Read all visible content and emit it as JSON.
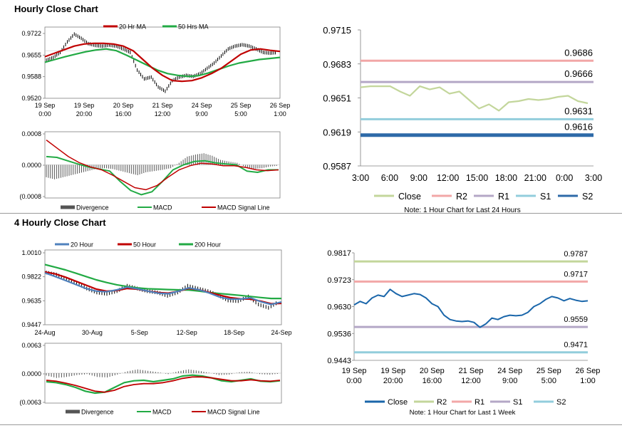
{
  "sections": {
    "hourly_title": "Hourly Close Chart",
    "four_hourly_title": "4 Hourly Close Chart"
  },
  "colors": {
    "red": "#c00000",
    "green": "#22aa44",
    "blue": "#4f81bd",
    "dark": "#555555",
    "lgreen": "#c3d69b",
    "pink": "#f2a7a7",
    "purple": "#b4a7c6",
    "lblue": "#92cddc",
    "dblue": "#2e6aa8",
    "closeblue": "#1a66aa"
  },
  "chart_data": [
    {
      "id": "hourly_price",
      "type": "line",
      "title": "",
      "legend": [
        "20 Hr MA",
        "50 Hrs MA"
      ],
      "ylim": [
        0.952,
        0.9722
      ],
      "y_ticks": [
        "0.9722",
        "0.9655",
        "0.9588",
        "0.9520"
      ],
      "x_ticks": [
        [
          "19 Sep",
          "0:00"
        ],
        [
          "19 Sep",
          "20:00"
        ],
        [
          "20 Sep",
          "16:00"
        ],
        [
          "21 Sep",
          "12:00"
        ],
        [
          "24 Sep",
          "9:00"
        ],
        [
          "25 Sep",
          "5:00"
        ],
        [
          "26 Sep",
          "1:00"
        ]
      ],
      "series": [
        {
          "name": "Close",
          "values": [
            0.9628,
            0.9636,
            0.965,
            0.968,
            0.9702,
            0.969,
            0.9675,
            0.967,
            0.9668,
            0.9671,
            0.9668,
            0.966,
            0.965,
            0.96,
            0.9575,
            0.958,
            0.9552,
            0.954,
            0.957,
            0.958,
            0.9585,
            0.9582,
            0.959,
            0.9605,
            0.962,
            0.964,
            0.966,
            0.9668,
            0.9672,
            0.9668,
            0.966,
            0.965,
            0.9648,
            0.965
          ]
        },
        {
          "name": "20 Hr MA",
          "values": [
            0.9638,
            0.9648,
            0.9658,
            0.9668,
            0.9674,
            0.9676,
            0.9676,
            0.9674,
            0.9668,
            0.9655,
            0.963,
            0.9605,
            0.9585,
            0.957,
            0.9568,
            0.957,
            0.9578,
            0.959,
            0.9605,
            0.9625,
            0.9645,
            0.9657,
            0.966,
            0.9656,
            0.9653
          ]
        },
        {
          "name": "50 Hrs MA",
          "values": [
            0.9622,
            0.963,
            0.9638,
            0.9645,
            0.9652,
            0.9657,
            0.966,
            0.9655,
            0.9642,
            0.9628,
            0.9614,
            0.96,
            0.959,
            0.9585,
            0.9582,
            0.9584,
            0.9592,
            0.9602,
            0.9612,
            0.962,
            0.9625,
            0.963,
            0.9633,
            0.9636
          ]
        }
      ]
    },
    {
      "id": "hourly_macd",
      "type": "line",
      "ylim": [
        -0.0008,
        0.0008
      ],
      "y_ticks": [
        "0.0008",
        "0.0000",
        "(0.0008"
      ],
      "legend": [
        "Divergence",
        "MACD",
        "MACD Signal Line"
      ],
      "series": [
        {
          "name": "Divergence",
          "values": [
            -0.0003,
            -0.00035,
            -0.0003,
            -0.00025,
            -0.0002,
            -0.00015,
            -0.0001,
            -8e-05,
            -0.0001,
            -0.00015,
            -0.0002,
            -0.00025,
            -0.00018,
            -0.00015,
            -0.00012,
            -8e-05,
            5e-05,
            0.0002,
            0.00025,
            0.00028,
            0.00022,
            0.00012,
            8e-05,
            5e-05,
            -5e-05,
            -0.0001,
            -8e-05,
            -4e-05,
            -2e-05
          ]
        },
        {
          "name": "MACD",
          "values": [
            0.0002,
            0.00018,
            0.0001,
            2e-05,
            -5e-05,
            -0.0001,
            -0.00015,
            -0.0004,
            -0.00062,
            -0.00072,
            -0.00065,
            -0.0004,
            -0.00012,
            0.0,
            8e-05,
            0.0001,
            5e-05,
            2e-05,
            0.0,
            -0.00015,
            -0.00018,
            -0.00012,
            -0.00012
          ]
        },
        {
          "name": "MACD Signal Line",
          "values": [
            0.0006,
            0.0004,
            0.0002,
            5e-05,
            -5e-05,
            -0.00012,
            -0.00025,
            -0.0004,
            -0.00055,
            -0.0006,
            -0.0005,
            -0.0003,
            -0.00012,
            -2e-05,
            4e-05,
            2e-05,
            -2e-05,
            -2e-05,
            -6e-05,
            -0.00012,
            -0.00014,
            -0.00012
          ]
        }
      ]
    },
    {
      "id": "hourly_levels",
      "type": "line",
      "ylim": [
        0.9587,
        0.9715
      ],
      "y_ticks": [
        "0.9715",
        "0.9683",
        "0.9651",
        "0.9619",
        "0.9587"
      ],
      "x_ticks": [
        "3:00",
        "6:00",
        "9:00",
        "12:00",
        "15:00",
        "18:00",
        "21:00",
        "0:00",
        "3:00"
      ],
      "levels": [
        {
          "name": "R2",
          "value": 0.9686,
          "label": "0.9686"
        },
        {
          "name": "R1",
          "value": 0.9666,
          "label": "0.9666"
        },
        {
          "name": "S1",
          "value": 0.9631,
          "label": "0.9631"
        },
        {
          "name": "S2",
          "value": 0.9616,
          "label": "0.9616"
        }
      ],
      "series": [
        {
          "name": "Close",
          "values": [
            0.9661,
            0.9662,
            0.9662,
            0.9662,
            0.9657,
            0.9653,
            0.9662,
            0.9659,
            0.9661,
            0.9655,
            0.9657,
            0.9649,
            0.9641,
            0.9645,
            0.9639,
            0.9647,
            0.9648,
            0.965,
            0.9649,
            0.965,
            0.9652,
            0.9653,
            0.9648,
            0.9646
          ]
        }
      ],
      "legend": [
        "Close",
        "R2",
        "R1",
        "S1",
        "S2"
      ],
      "note": "Note: 1 Hour Chart for Last 24 Hours"
    },
    {
      "id": "four_hourly_price",
      "type": "line",
      "ylim": [
        0.9447,
        1.001
      ],
      "y_ticks": [
        "1.0010",
        "0.9822",
        "0.9635",
        "0.9447"
      ],
      "x_ticks": [
        "24-Aug",
        "30-Aug",
        "5-Sep",
        "12-Sep",
        "18-Sep",
        "24-Sep"
      ],
      "legend": [
        "20 Hour",
        "50 Hour",
        "200 Hour"
      ],
      "series": [
        {
          "name": "Close",
          "values": [
            0.984,
            0.9825,
            0.979,
            0.976,
            0.972,
            0.969,
            0.968,
            0.97,
            0.974,
            0.972,
            0.97,
            0.969,
            0.9665,
            0.969,
            0.974,
            0.972,
            0.97,
            0.967,
            0.963,
            0.9625,
            0.966,
            0.96,
            0.9575,
            0.962
          ]
        },
        {
          "name": "20 Hour",
          "values": [
            0.9838,
            0.981,
            0.978,
            0.975,
            0.972,
            0.97,
            0.9695,
            0.971,
            0.973,
            0.9718,
            0.97,
            0.9685,
            0.968,
            0.97,
            0.9725,
            0.971,
            0.9685,
            0.9655,
            0.964,
            0.964,
            0.965,
            0.962,
            0.96,
            0.9618
          ]
        },
        {
          "name": "50 Hour",
          "values": [
            0.9845,
            0.983,
            0.9805,
            0.9775,
            0.9745,
            0.9715,
            0.97,
            0.9705,
            0.972,
            0.9715,
            0.97,
            0.969,
            0.9685,
            0.97,
            0.972,
            0.971,
            0.969,
            0.967,
            0.9652,
            0.9642,
            0.964,
            0.9625,
            0.9605,
            0.9608
          ]
        },
        {
          "name": "200 Hour",
          "values": [
            0.99,
            0.988,
            0.986,
            0.9835,
            0.981,
            0.9785,
            0.9765,
            0.9748,
            0.9735,
            0.9725,
            0.9718,
            0.9715,
            0.9712,
            0.971,
            0.9708,
            0.97,
            0.969,
            0.9682,
            0.9675,
            0.9668,
            0.966,
            0.9652,
            0.9645,
            0.9645
          ]
        }
      ]
    },
    {
      "id": "four_hourly_macd",
      "type": "line",
      "ylim": [
        -0.0063,
        0.0063
      ],
      "y_ticks": [
        "0.0063",
        "0.0000",
        "(0.0063"
      ],
      "legend": [
        "Divergence",
        "MACD",
        "MACD Signal Line"
      ],
      "series": [
        {
          "name": "Divergence",
          "values": [
            -0.0005,
            -0.001,
            -0.0008,
            -0.0004,
            -0.0002,
            -0.0008,
            -0.0009,
            -0.0003,
            0.0004,
            0.0008,
            0.0005,
            0.0002,
            -0.0002,
            0.0004,
            0.0008,
            0.0005,
            0.0001,
            -0.0004,
            -0.0003,
            0.0002,
            0.0003,
            -0.0002,
            -0.0003,
            -0.0001
          ]
        },
        {
          "name": "MACD",
          "values": [
            -0.0018,
            -0.002,
            -0.0024,
            -0.003,
            -0.0038,
            -0.0042,
            -0.004,
            -0.003,
            -0.002,
            -0.0016,
            -0.0015,
            -0.0018,
            -0.0015,
            -0.0012,
            -0.0006,
            -0.0004,
            -0.0006,
            -0.001,
            -0.0016,
            -0.0018,
            -0.0015,
            -0.0012,
            -0.0017,
            -0.0018,
            -0.0016
          ]
        },
        {
          "name": "MACD Signal Line",
          "values": [
            -0.0015,
            -0.0017,
            -0.0021,
            -0.0026,
            -0.0032,
            -0.0038,
            -0.004,
            -0.0036,
            -0.0028,
            -0.0024,
            -0.0022,
            -0.0022,
            -0.002,
            -0.0016,
            -0.0011,
            -0.0008,
            -0.0008,
            -0.001,
            -0.0013,
            -0.0016,
            -0.0016,
            -0.0014,
            -0.0016,
            -0.0017,
            -0.0015
          ]
        }
      ]
    },
    {
      "id": "four_hourly_levels",
      "type": "line",
      "ylim": [
        0.9443,
        0.9817
      ],
      "y_ticks": [
        "0.9817",
        "0.9723",
        "0.9630",
        "0.9536",
        "0.9443"
      ],
      "x_ticks": [
        [
          "19 Sep",
          "0:00"
        ],
        [
          "19 Sep",
          "20:00"
        ],
        [
          "20 Sep",
          "16:00"
        ],
        [
          "21 Sep",
          "12:00"
        ],
        [
          "24 Sep",
          "9:00"
        ],
        [
          "25 Sep",
          "5:00"
        ],
        [
          "26 Sep",
          "1:00"
        ]
      ],
      "levels": [
        {
          "name": "R2",
          "value": 0.9787,
          "label": "0.9787"
        },
        {
          "name": "R1",
          "value": 0.9717,
          "label": "0.9717"
        },
        {
          "name": "S1",
          "value": 0.9559,
          "label": "0.9559"
        },
        {
          "name": "S2",
          "value": 0.9471,
          "label": "0.9471"
        }
      ],
      "series": [
        {
          "name": "Close",
          "values": [
            0.9636,
            0.9648,
            0.964,
            0.966,
            0.967,
            0.9665,
            0.969,
            0.9675,
            0.9665,
            0.967,
            0.9675,
            0.9672,
            0.966,
            0.964,
            0.963,
            0.96,
            0.9585,
            0.958,
            0.9578,
            0.958,
            0.9575,
            0.9558,
            0.957,
            0.959,
            0.9585,
            0.9595,
            0.96,
            0.9598,
            0.96,
            0.961,
            0.963,
            0.964,
            0.9655,
            0.9665,
            0.966,
            0.965,
            0.9658,
            0.9652,
            0.9648,
            0.965
          ]
        }
      ],
      "legend": [
        "Close",
        "R2",
        "R1",
        "S1",
        "S2"
      ],
      "note": "Note: 1 Hour Chart for Last 1 Week"
    }
  ]
}
